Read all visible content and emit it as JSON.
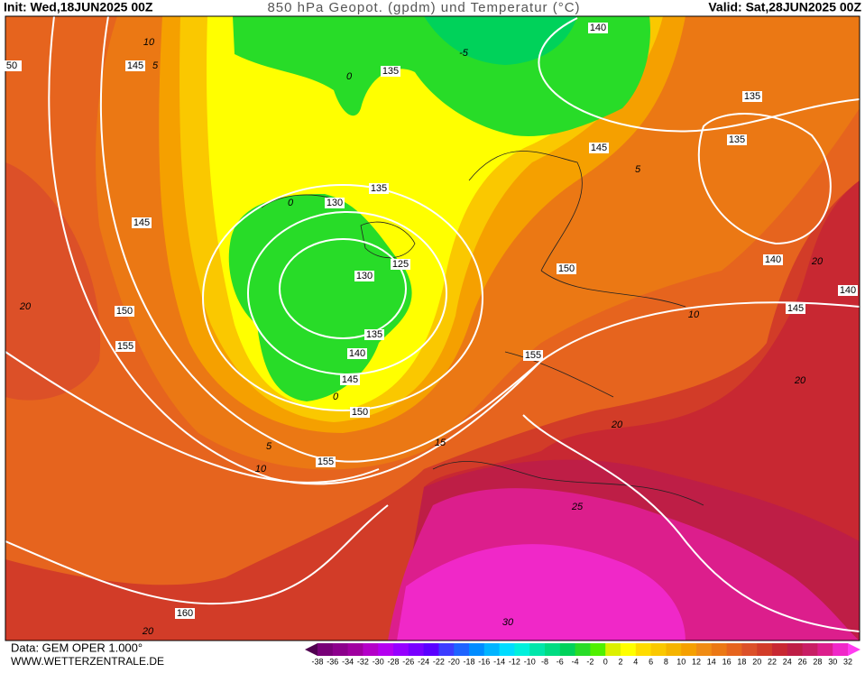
{
  "header": {
    "init": "Init: Wed,18JUN2025 00Z",
    "title": "850 hPa Geopot. (gpdm) und Temperatur (°C)",
    "valid": "Valid: Sat,28JUN2025 00Z"
  },
  "map": {
    "geopotential_labels": [
      50,
      145,
      135,
      140,
      135,
      135,
      145,
      135,
      130,
      145,
      125,
      130,
      150,
      140,
      140,
      145,
      150,
      135,
      155,
      140,
      155,
      145,
      150,
      155,
      160
    ],
    "temperature_labels": [
      10,
      5,
      -5,
      0,
      5,
      0,
      0,
      5,
      10,
      15,
      10,
      20,
      20,
      20,
      25,
      30,
      20,
      20
    ]
  },
  "colorbar": {
    "ticks": [
      -38,
      -36,
      -34,
      -32,
      -30,
      -28,
      -26,
      -24,
      -22,
      -20,
      -18,
      -16,
      -14,
      -12,
      -10,
      -8,
      -6,
      -4,
      -2,
      0,
      2,
      4,
      6,
      8,
      10,
      12,
      14,
      16,
      18,
      20,
      22,
      24,
      26,
      28,
      30,
      32
    ],
    "colors": [
      "#500050",
      "#780078",
      "#8c008c",
      "#a000a0",
      "#b400c8",
      "#b400f0",
      "#9600ff",
      "#7800ff",
      "#5a00ff",
      "#3c3cff",
      "#1e64ff",
      "#008cff",
      "#00b4ff",
      "#00dcff",
      "#00f0dc",
      "#00e6aa",
      "#00dc82",
      "#00d25a",
      "#28dc28",
      "#50f000",
      "#dcf000",
      "#ffff00",
      "#ffdc00",
      "#fac800",
      "#f5b400",
      "#f5a000",
      "#f08c14",
      "#eb7814",
      "#e6641e",
      "#dc5028",
      "#d23c28",
      "#c82832",
      "#be1e46",
      "#c81e64",
      "#dc1e8c",
      "#f028c8",
      "#ff3cf0"
    ]
  },
  "footer": {
    "source": "Data: GEM OPER 1.000°",
    "site": "WWW.WETTERZENTRALE.DE"
  }
}
